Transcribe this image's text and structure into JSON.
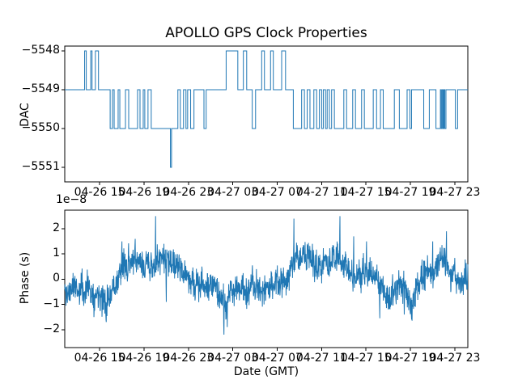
{
  "figure": {
    "background": "#ffffff",
    "line_color": "#1f77b4",
    "axis_color": "#000000",
    "text_color": "#000000"
  },
  "chart_data": [
    {
      "type": "line",
      "subplot": "dac",
      "style": "steps-post",
      "title": "APOLLO GPS Clock Properties",
      "ylabel": "DAC",
      "x_unit": "hours since 04-26 12:00",
      "xlim": [
        -0.14,
        36.17
      ],
      "ylim": [
        -5551.375,
        -5547.875
      ],
      "yticks": [
        -5548,
        -5549,
        -5550,
        -5551
      ],
      "ytick_labels": [
        "−5548",
        "−5549",
        "−5550",
        "−5551"
      ],
      "xticks": [
        3,
        7,
        11,
        15,
        19,
        23,
        27,
        31,
        35
      ],
      "xtick_labels": [
        "04-26 15",
        "04-26 19",
        "04-26 23",
        "04-27 03",
        "04-27 07",
        "04-27 11",
        "04-27 15",
        "04-27 19",
        "04-27 23"
      ],
      "steps": [
        [
          -0.14,
          -5549
        ],
        [
          1.65,
          -5548
        ],
        [
          1.8,
          -5549
        ],
        [
          2.2,
          -5548
        ],
        [
          2.32,
          -5549
        ],
        [
          2.62,
          -5548
        ],
        [
          2.9,
          -5549
        ],
        [
          3.95,
          -5550
        ],
        [
          4.16,
          -5549
        ],
        [
          4.31,
          -5550
        ],
        [
          4.67,
          -5549
        ],
        [
          4.82,
          -5550
        ],
        [
          5.33,
          -5549
        ],
        [
          5.62,
          -5550
        ],
        [
          6.42,
          -5549
        ],
        [
          6.64,
          -5550
        ],
        [
          6.93,
          -5549
        ],
        [
          7.07,
          -5550
        ],
        [
          7.36,
          -5549
        ],
        [
          7.65,
          -5550
        ],
        [
          9.38,
          -5551
        ],
        [
          9.48,
          -5550
        ],
        [
          10.05,
          -5549
        ],
        [
          10.27,
          -5550
        ],
        [
          10.56,
          -5549
        ],
        [
          10.78,
          -5550
        ],
        [
          10.93,
          -5549
        ],
        [
          11.2,
          -5550
        ],
        [
          11.5,
          -5549
        ],
        [
          12.4,
          -5550
        ],
        [
          12.6,
          -5549
        ],
        [
          14.4,
          -5548
        ],
        [
          15.45,
          -5549
        ],
        [
          15.95,
          -5548
        ],
        [
          16.25,
          -5549
        ],
        [
          16.75,
          -5550
        ],
        [
          17.05,
          -5549
        ],
        [
          17.6,
          -5548
        ],
        [
          17.85,
          -5549
        ],
        [
          18.4,
          -5548
        ],
        [
          18.65,
          -5549
        ],
        [
          19.4,
          -5548
        ],
        [
          19.75,
          -5549
        ],
        [
          20.45,
          -5550
        ],
        [
          21.2,
          -5549
        ],
        [
          21.45,
          -5550
        ],
        [
          21.7,
          -5549
        ],
        [
          21.95,
          -5550
        ],
        [
          22.3,
          -5549
        ],
        [
          22.55,
          -5550
        ],
        [
          22.8,
          -5549
        ],
        [
          23.0,
          -5550
        ],
        [
          23.15,
          -5549
        ],
        [
          23.35,
          -5550
        ],
        [
          23.5,
          -5549
        ],
        [
          23.7,
          -5550
        ],
        [
          23.9,
          -5549
        ],
        [
          24.15,
          -5550
        ],
        [
          25.0,
          -5549
        ],
        [
          25.25,
          -5550
        ],
        [
          25.8,
          -5549
        ],
        [
          26.05,
          -5550
        ],
        [
          26.6,
          -5549
        ],
        [
          26.85,
          -5550
        ],
        [
          27.65,
          -5549
        ],
        [
          27.95,
          -5550
        ],
        [
          28.3,
          -5549
        ],
        [
          28.55,
          -5550
        ],
        [
          29.55,
          -5549
        ],
        [
          30.0,
          -5550
        ],
        [
          30.7,
          -5549
        ],
        [
          30.95,
          -5550
        ],
        [
          31.1,
          -5549
        ],
        [
          32.2,
          -5550
        ],
        [
          32.7,
          -5549
        ],
        [
          33.3,
          -5550
        ],
        [
          33.7,
          -5549
        ],
        [
          33.78,
          -5550
        ],
        [
          33.86,
          -5549
        ],
        [
          33.94,
          -5550
        ],
        [
          34.02,
          -5549
        ],
        [
          34.1,
          -5550
        ],
        [
          34.2,
          -5549
        ],
        [
          35.05,
          -5550
        ],
        [
          35.25,
          -5549
        ],
        [
          36.17,
          -5549
        ]
      ]
    },
    {
      "type": "line",
      "subplot": "phase",
      "ylabel": "Phase (s)",
      "offset_text": "1e−8",
      "xlabel": "Date (GMT)",
      "y_scale": "1e-8",
      "xlim": [
        -0.14,
        36.17
      ],
      "ylim": [
        -2.712,
        2.737
      ],
      "yticks": [
        2,
        1,
        0,
        -1,
        -2
      ],
      "ytick_labels": [
        "2",
        "1",
        "0",
        "−1",
        "−2"
      ],
      "xticks": [
        3,
        7,
        11,
        15,
        19,
        23,
        27,
        31,
        35
      ],
      "xtick_labels": [
        "04-26 15",
        "04-26 19",
        "04-26 23",
        "04-27 03",
        "04-27 07",
        "04-27 11",
        "04-27 15",
        "04-27 19",
        "04-27 23"
      ],
      "mean_anchors": [
        [
          -0.14,
          -0.5
        ],
        [
          0.7,
          -0.45
        ],
        [
          1.5,
          -0.35
        ],
        [
          2.3,
          -0.6
        ],
        [
          3,
          -0.45
        ],
        [
          3.6,
          -0.8
        ],
        [
          4.2,
          -0.3
        ],
        [
          4.8,
          0.2
        ],
        [
          5.3,
          0.5
        ],
        [
          6,
          0.65
        ],
        [
          6.7,
          0.55
        ],
        [
          7.4,
          0.55
        ],
        [
          8,
          0.6
        ],
        [
          8.6,
          0.9
        ],
        [
          9.2,
          0.9
        ],
        [
          9.8,
          0.5
        ],
        [
          10.4,
          0.3
        ],
        [
          11,
          -0.05
        ],
        [
          11.6,
          -0.2
        ],
        [
          12.2,
          -0.3
        ],
        [
          12.8,
          -0.25
        ],
        [
          13.4,
          -0.4
        ],
        [
          14,
          -0.7
        ],
        [
          14.4,
          -1.0
        ],
        [
          14.8,
          -0.5
        ],
        [
          15.3,
          -0.3
        ],
        [
          15.9,
          -0.25
        ],
        [
          16.5,
          -0.45
        ],
        [
          17.1,
          -0.35
        ],
        [
          17.7,
          -0.55
        ],
        [
          18.2,
          -0.4
        ],
        [
          18.8,
          -0.1
        ],
        [
          19.4,
          0.1
        ],
        [
          20,
          0.3
        ],
        [
          20.6,
          1.0
        ],
        [
          21.2,
          0.9
        ],
        [
          21.8,
          0.75
        ],
        [
          22.4,
          0.65
        ],
        [
          23,
          0.55
        ],
        [
          23.6,
          0.7
        ],
        [
          24.2,
          0.8
        ],
        [
          24.8,
          0.55
        ],
        [
          25.4,
          0.35
        ],
        [
          26,
          0.1
        ],
        [
          26.6,
          0.05
        ],
        [
          27.2,
          0.2
        ],
        [
          27.8,
          -0.1
        ],
        [
          28.4,
          -0.45
        ],
        [
          29,
          -0.55
        ],
        [
          29.6,
          -0.3
        ],
        [
          30.2,
          -0.4
        ],
        [
          30.8,
          -0.55
        ],
        [
          31.4,
          -0.6
        ],
        [
          32,
          -0.1
        ],
        [
          32.6,
          0.2
        ],
        [
          33.2,
          0.45
        ],
        [
          33.8,
          0.55
        ],
        [
          34.4,
          0.3
        ],
        [
          35,
          0.0
        ],
        [
          35.6,
          -0.15
        ],
        [
          36.17,
          0.2
        ]
      ],
      "spikes": [
        [
          3.6,
          -1.7
        ],
        [
          5.0,
          1.5
        ],
        [
          6.2,
          1.6
        ],
        [
          8.05,
          2.5
        ],
        [
          9.0,
          -0.9
        ],
        [
          14.2,
          -2.2
        ],
        [
          14.5,
          -1.9
        ],
        [
          20.5,
          2.4
        ],
        [
          24.65,
          2.5
        ],
        [
          25.9,
          1.7
        ],
        [
          27.05,
          1.5
        ],
        [
          28.25,
          -1.55
        ],
        [
          29.0,
          -1.2
        ],
        [
          30.45,
          -1.4
        ],
        [
          31.1,
          -1.6
        ],
        [
          33.0,
          1.5
        ],
        [
          34.25,
          1.9
        ]
      ],
      "noise": {
        "seed": 11,
        "amplitude": 0.7,
        "ar": 0.9,
        "walk_scale": 0.25,
        "points": 1700
      }
    }
  ]
}
